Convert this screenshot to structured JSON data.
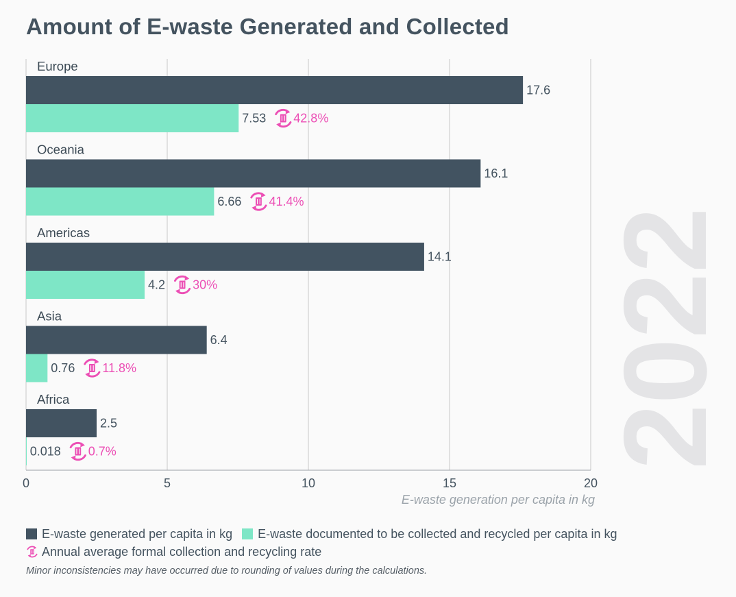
{
  "title": "Amount of E-waste Generated and Collected",
  "year_watermark": "2022",
  "colors": {
    "generated": "#425361",
    "collected": "#7ee6c6",
    "rate": "#ec4fb5",
    "grid": "#c8c8c8",
    "watermark": "#e4e4e6"
  },
  "icons": {
    "rate": "recycle-circle-icon"
  },
  "chart_data": {
    "type": "bar",
    "orientation": "horizontal",
    "categories": [
      "Europe",
      "Oceania",
      "Americas",
      "Asia",
      "Africa"
    ],
    "series": [
      {
        "name": "E-waste generated per capita in kg",
        "values": [
          17.6,
          16.1,
          14.1,
          6.4,
          2.5
        ],
        "labels": [
          "17.6",
          "16.1",
          "14.1",
          "6.4",
          "2.5"
        ]
      },
      {
        "name": "E-waste documented to be collected and recycled per capita in kg",
        "values": [
          7.53,
          6.66,
          4.2,
          0.76,
          0.018
        ],
        "labels": [
          "7.53",
          "6.66",
          "4.2",
          "0.76",
          "0.018"
        ]
      }
    ],
    "rates": [
      "42.8%",
      "41.4%",
      "30%",
      "11.8%",
      "0.7%"
    ],
    "rate_label": "Annual average formal collection and recycling rate",
    "xlabel": "E-waste generation per capita in kg",
    "xlim": [
      0,
      20
    ],
    "xticks": [
      "0",
      "5",
      "10",
      "15",
      "20"
    ],
    "grid": true,
    "legend_position": "bottom"
  },
  "footnote": "Minor inconsistencies may have occurred due to rounding of values during the calculations."
}
